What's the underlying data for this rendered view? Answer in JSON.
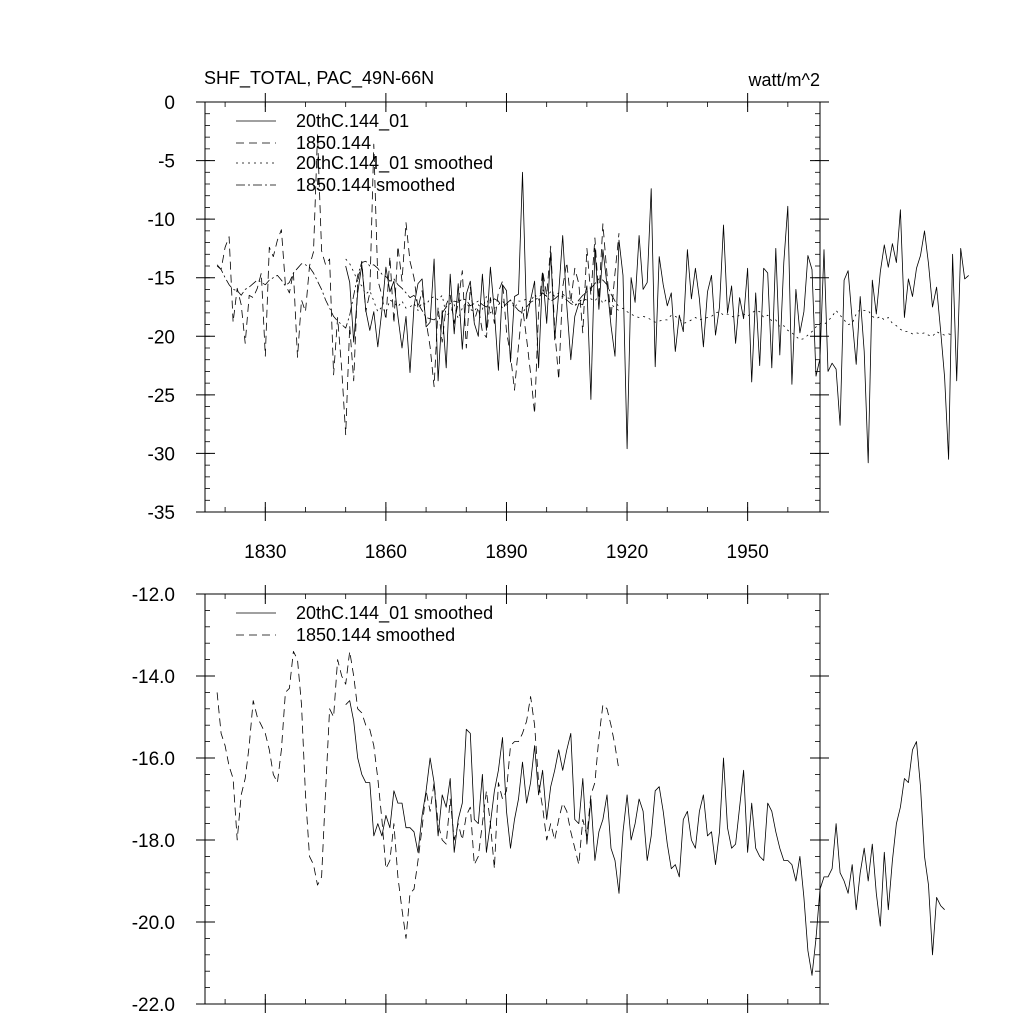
{
  "chart_data": [
    {
      "type": "line",
      "title": "SHF_TOTAL, PAC_49N-66N",
      "units": "watt/m^2",
      "xlim": [
        1815,
        1968
      ],
      "ylim": [
        -35,
        0
      ],
      "x_ticks": [
        1830,
        1860,
        1890,
        1920,
        1950
      ],
      "y_ticks": [
        0,
        -5,
        -10,
        -15,
        -20,
        -25,
        -30,
        -35
      ],
      "y_tick_labels": [
        "0",
        "-5",
        "-10",
        "-15",
        "-20",
        "-25",
        "-30",
        "-35"
      ],
      "grid": false,
      "legend_position": "top-left",
      "series": [
        {
          "name": "20thC.144_01",
          "style": "solid",
          "x_start": 1850,
          "values": [
            -14.0,
            -15.4,
            -20.5,
            -16.3,
            -13.9,
            -17.8,
            -19.5,
            -17.9,
            -20.9,
            -17.8,
            -14.1,
            -16.2,
            -15.3,
            -18.3,
            -21.0,
            -18.3,
            -23.1,
            -17.4,
            -15.5,
            -15.1,
            -19.2,
            -18.8,
            -13.4,
            -23.8,
            -17.8,
            -22.7,
            -14.7,
            -19.8,
            -15.5,
            -21.1,
            -16.4,
            -15.3,
            -18.9,
            -20.0,
            -14.7,
            -19.5,
            -14.1,
            -17.9,
            -22.9,
            -15.6,
            -16.1,
            -22.2,
            -16.6,
            -16.4,
            -6.0,
            -18.5,
            -16.9,
            -15.3,
            -22.7,
            -14.6,
            -18.9,
            -12.8,
            -20.3,
            -16.3,
            -11.4,
            -17.4,
            -22.0,
            -18.3,
            -17.2,
            -17.3,
            -15.7,
            -25.4,
            -12.5,
            -17.7,
            -12.6,
            -15.6,
            -19.1,
            -21.7,
            -11.8,
            -14.8,
            -29.6,
            -15.0,
            -17.1,
            -11.4,
            -16.0,
            -15.4,
            -7.4,
            -22.6,
            -13.2,
            -15.6,
            -17.4,
            -16.3,
            -21.3,
            -18.2,
            -19.6,
            -12.6,
            -16.8,
            -14.2,
            -16.8,
            -20.9,
            -16.2,
            -14.8,
            -19.9,
            -17.5,
            -10.5,
            -18.0,
            -15.7,
            -20.6,
            -16.7,
            -18.5,
            -14.2,
            -23.9,
            -16.3,
            -22.5,
            -14.2,
            -14.6,
            -22.7,
            -12.5,
            -21.6,
            -13.7,
            -8.9,
            -24.1,
            -16.0,
            -19.7,
            -17.9,
            -13.1,
            -14.3,
            -23.4,
            -21.9,
            -12.6,
            -23.0,
            -22.3,
            -22.8,
            -27.6,
            -15.2,
            -14.4,
            -18.6,
            -22.4,
            -16.6,
            -21.3,
            -30.8,
            -15.2,
            -18.1,
            -14.5,
            -12.2,
            -14.1,
            -12.1,
            -13.7,
            -9.2,
            -18.4,
            -15.1,
            -16.6,
            -14.2,
            -13.1,
            -11.0,
            -13.8,
            -17.5,
            -15.8,
            -19.5,
            -23.5,
            -30.5,
            -13.0,
            -23.8,
            -12.5,
            -15.1,
            -14.8
          ]
        },
        {
          "name": "1850.144",
          "style": "dashed",
          "x_start": 1818,
          "values": [
            -13.9,
            -14.3,
            -12.4,
            -11.5,
            -18.8,
            -15.9,
            -17.3,
            -20.6,
            -16.5,
            -16.7,
            -15.9,
            -14.6,
            -21.7,
            -12.4,
            -13.2,
            -11.8,
            -10.9,
            -15.6,
            -16.3,
            -14.5,
            -21.8,
            -16.9,
            -17.9,
            -14.0,
            -12.8,
            -2.8,
            -12.7,
            -13.9,
            -13.4,
            -23.3,
            -18.4,
            -22.8,
            -28.4,
            -19.1,
            -23.8,
            -15.3,
            -13.6,
            -17.9,
            -16.3,
            -3.6,
            -15.2,
            -16.5,
            -18.6,
            -13.2,
            -18.9,
            -12.3,
            -15.3,
            -10.3,
            -13.6,
            -15.0,
            -17.6,
            -16.1,
            -18.7,
            -20.9,
            -24.3,
            -17.5,
            -20.5,
            -17.3,
            -16.5,
            -18.9,
            -17.1,
            -14.4,
            -21.0,
            -15.8,
            -18.7,
            -17.5,
            -19.6,
            -20.1,
            -16.7,
            -18.9,
            -16.2,
            -15.3,
            -19.6,
            -21.6,
            -24.6,
            -20.8,
            -17.5,
            -20.2,
            -23.2,
            -26.6,
            -17.8,
            -14.4,
            -16.5,
            -12.3,
            -19.4,
            -23.7,
            -15.8,
            -13.7,
            -17.1,
            -14.2,
            -15.5,
            -19.7,
            -12.5,
            -16.5,
            -11.6,
            -16.8,
            -10.4,
            -14.7,
            -18.4,
            -14.6,
            -11.2
          ]
        },
        {
          "name": "20thC.144_01 smoothed",
          "style": "dotted",
          "x_start": 1850,
          "values": [
            -13.4,
            -13.8,
            -14.5,
            -15.3,
            -15.7,
            -16.4,
            -16.1,
            -17.0,
            -17.9,
            -17.5,
            -18.0,
            -16.9,
            -17.1,
            -17.5,
            -17.0,
            -17.6,
            -17.5,
            -17.2,
            -17.8,
            -17.1,
            -17.3,
            -16.8,
            -16.6,
            -16.9,
            -16.5,
            -18.2,
            -18.0,
            -17.3,
            -18.5,
            -17.6,
            -17.1,
            -17.7,
            -17.9,
            -17.3,
            -17.7,
            -16.6,
            -18.0,
            -17.6,
            -17.3,
            -17.0,
            -17.4,
            -16.9,
            -17.6,
            -17.0,
            -17.0,
            -16.8,
            -17.1,
            -16.4,
            -16.9,
            -16.0,
            -16.6,
            -16.2,
            -16.6,
            -16.3,
            -16.4,
            -16.7,
            -16.8,
            -17.4,
            -17.1,
            -16.8,
            -16.9,
            -16.8,
            -17.0,
            -16.5,
            -17.2,
            -16.8,
            -17.2,
            -17.6,
            -17.8,
            -17.6,
            -17.9,
            -18.1,
            -18.3,
            -18.4,
            -18.3,
            -18.4,
            -18.6,
            -18.8,
            -18.7,
            -18.6,
            -18.6,
            -18.2,
            -18.3,
            -18.5,
            -18.9,
            -18.8,
            -18.6,
            -18.4,
            -18.6,
            -18.5,
            -18.4,
            -18.3,
            -18.0,
            -17.9,
            -18.2,
            -18.1,
            -18.3,
            -18.4,
            -18.2,
            -18.1,
            -18.3,
            -18.0,
            -17.8,
            -17.9,
            -18.4,
            -18.2,
            -18.7,
            -18.6,
            -19.2,
            -19.1,
            -19.5,
            -19.7,
            -20.0,
            -20.3,
            -20.2,
            -19.9,
            -19.6,
            -19.2,
            -18.9,
            -19.0,
            -18.7,
            -18.3,
            -17.8,
            -18.2,
            -18.6,
            -19.0,
            -18.9,
            -18.1,
            -17.7,
            -17.8,
            -17.8,
            -18.3,
            -18.5,
            -18.3,
            -18.6,
            -18.4,
            -18.9,
            -19.1,
            -19.4,
            -19.6,
            -19.6,
            -19.8,
            -19.7,
            -19.8,
            -19.7,
            -19.9,
            -20.0,
            -19.6,
            -19.8,
            -19.9,
            -19.8,
            -19.9
          ]
        },
        {
          "name": "1850.144 smoothed",
          "style": "dash-dot",
          "x_start": 1818,
          "values": [
            -14.0,
            -14.3,
            -15.0,
            -15.6,
            -16.0,
            -16.1,
            -16.5,
            -16.0,
            -15.8,
            -15.5,
            -15.2,
            -15.4,
            -15.6,
            -15.2,
            -15.0,
            -14.8,
            -15.2,
            -15.7,
            -15.4,
            -14.6,
            -14.2,
            -13.8,
            -13.9,
            -14.1,
            -14.6,
            -15.3,
            -16.0,
            -16.9,
            -17.6,
            -18.3,
            -18.7,
            -19.0,
            -19.3,
            -18.2,
            -16.5,
            -14.8,
            -13.7,
            -13.6,
            -14.0,
            -13.9,
            -14.2,
            -14.7,
            -14.9,
            -15.3,
            -15.1,
            -15.6,
            -15.9,
            -16.3,
            -16.7,
            -16.5,
            -17.2,
            -17.8,
            -18.4,
            -18.5,
            -18.6,
            -18.3,
            -18.0,
            -17.5,
            -17.2,
            -17.0,
            -17.1,
            -16.8,
            -16.9,
            -17.4,
            -17.2,
            -17.0,
            -17.3,
            -17.5,
            -17.1,
            -16.8,
            -17.0,
            -17.6,
            -17.2,
            -16.9,
            -17.4,
            -17.8,
            -18.0,
            -17.5,
            -17.1,
            -16.9,
            -16.7,
            -16.3,
            -16.6,
            -17.0,
            -16.8,
            -16.5,
            -16.6,
            -16.9,
            -17.2,
            -17.4,
            -16.9,
            -16.5,
            -16.2,
            -15.9,
            -15.5,
            -15.1,
            -15.2,
            -15.6,
            -16.4,
            -17.0,
            -17.5
          ]
        }
      ]
    },
    {
      "type": "line",
      "title": "",
      "xlim": [
        1815,
        1968
      ],
      "ylim": [
        -22.0,
        -12.0
      ],
      "y_ticks": [
        -12.0,
        -14.0,
        -16.0,
        -18.0,
        -20.0,
        -22.0
      ],
      "y_tick_labels": [
        "-12.0",
        "-14.0",
        "-16.0",
        "-18.0",
        "-20.0",
        "-22.0"
      ],
      "grid": false,
      "legend_position": "top-left",
      "series": [
        {
          "name": "20thC.144_01 smoothed",
          "style": "solid",
          "x_start": 1850,
          "values": [
            -14.7,
            -14.6,
            -15.1,
            -16.0,
            -16.4,
            -16.6,
            -16.6,
            -17.9,
            -17.6,
            -17.9,
            -17.4,
            -17.7,
            -16.8,
            -17.1,
            -17.1,
            -17.7,
            -17.7,
            -17.8,
            -18.3,
            -17.4,
            -16.8,
            -16.0,
            -16.6,
            -17.9,
            -16.9,
            -17.2,
            -16.5,
            -18.3,
            -17.5,
            -17.1,
            -15.3,
            -15.4,
            -17.5,
            -17.6,
            -16.4,
            -18.3,
            -17.6,
            -16.8,
            -16.3,
            -15.5,
            -17.3,
            -18.2,
            -17.5,
            -17.0,
            -16.1,
            -17.1,
            -16.6,
            -15.7,
            -16.9,
            -16.3,
            -17.5,
            -16.7,
            -16.3,
            -15.8,
            -16.3,
            -15.8,
            -15.4,
            -17.5,
            -17.6,
            -16.5,
            -18.1,
            -17.0,
            -18.5,
            -17.8,
            -17.5,
            -16.9,
            -18.2,
            -18.5,
            -19.3,
            -17.8,
            -16.9,
            -18.0,
            -17.6,
            -17.0,
            -17.3,
            -18.5,
            -17.9,
            -16.8,
            -16.7,
            -17.3,
            -18.1,
            -18.7,
            -18.6,
            -18.9,
            -17.5,
            -17.3,
            -18.0,
            -18.2,
            -17.3,
            -16.9,
            -17.9,
            -17.8,
            -18.6,
            -17.8,
            -16.0,
            -17.7,
            -18.2,
            -18.1,
            -17.2,
            -16.3,
            -18.3,
            -17.1,
            -18.2,
            -18.4,
            -18.5,
            -17.1,
            -17.3,
            -17.8,
            -18.2,
            -18.5,
            -18.5,
            -18.6,
            -19.0,
            -18.4,
            -19.4,
            -20.7,
            -21.3,
            -20.4,
            -19.2,
            -18.9,
            -18.9,
            -18.7,
            -17.6,
            -18.8,
            -19.0,
            -19.3,
            -18.6,
            -19.7,
            -18.8,
            -18.2,
            -19.0,
            -18.1,
            -19.3,
            -20.1,
            -18.3,
            -19.7,
            -18.5,
            -17.6,
            -17.2,
            -16.5,
            -16.6,
            -15.8,
            -15.6,
            -16.7,
            -18.4,
            -19.1,
            -20.8,
            -19.4,
            -19.6,
            -19.7
          ]
        },
        {
          "name": "1850.144 smoothed",
          "style": "dashed",
          "x_start": 1818,
          "values": [
            -14.4,
            -15.4,
            -15.7,
            -16.2,
            -16.5,
            -18.0,
            -16.9,
            -16.5,
            -15.7,
            -14.6,
            -15.0,
            -15.2,
            -15.4,
            -15.8,
            -16.4,
            -16.6,
            -15.8,
            -14.4,
            -14.3,
            -13.4,
            -13.6,
            -14.7,
            -16.9,
            -18.4,
            -18.6,
            -19.1,
            -18.9,
            -16.8,
            -14.8,
            -15.0,
            -13.6,
            -14.0,
            -14.2,
            -13.4,
            -14.0,
            -14.8,
            -14.9,
            -15.2,
            -15.3,
            -15.7,
            -16.5,
            -17.5,
            -18.7,
            -18.5,
            -17.6,
            -18.9,
            -19.7,
            -20.4,
            -19.3,
            -19.2,
            -18.5,
            -17.7,
            -16.8,
            -17.3,
            -16.6,
            -17.6,
            -18.0,
            -18.1,
            -17.0,
            -18.0,
            -17.6,
            -18.0,
            -17.4,
            -17.2,
            -18.6,
            -18.4,
            -17.6,
            -16.8,
            -17.6,
            -18.7,
            -16.6,
            -17.0,
            -16.8,
            -15.7,
            -15.6,
            -15.6,
            -15.4,
            -15.1,
            -14.5,
            -15.2,
            -16.6,
            -17.2,
            -18.0,
            -17.6,
            -18.0,
            -17.5,
            -17.1,
            -17.3,
            -17.8,
            -18.2,
            -18.6,
            -17.5,
            -17.9,
            -16.9,
            -16.6,
            -15.5,
            -14.7,
            -14.8,
            -15.2,
            -15.7,
            -16.3
          ]
        }
      ]
    }
  ]
}
